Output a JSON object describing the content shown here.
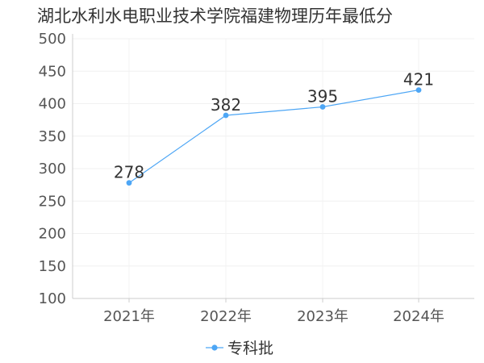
{
  "title": "湖北水利水电职业技术学院福建物理历年最低分",
  "chart_data": {
    "type": "line",
    "title": "湖北水利水电职业技术学院福建物理历年最低分",
    "xlabel": "",
    "ylabel": "",
    "categories": [
      "2021年",
      "2022年",
      "2023年",
      "2024年"
    ],
    "series": [
      {
        "name": "专科批",
        "values": [
          278,
          382,
          395,
          421
        ],
        "color": "#4da6f5"
      }
    ],
    "ylim": [
      100,
      500
    ],
    "yticks": [
      100,
      150,
      200,
      250,
      300,
      350,
      400,
      450,
      500
    ],
    "ytick_labels": [
      "100",
      "150",
      "200",
      "250",
      "300",
      "350",
      "400",
      "450",
      "500"
    ],
    "grid": true,
    "legend_position": "bottom-center",
    "data_labels": [
      "278",
      "382",
      "395",
      "421"
    ]
  }
}
